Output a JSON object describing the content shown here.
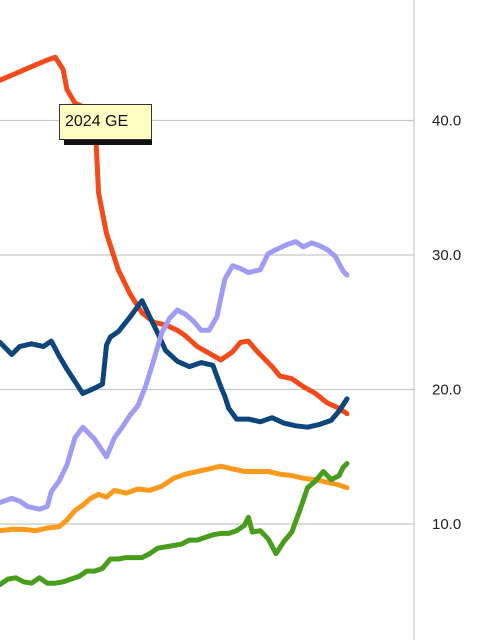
{
  "chart_data": {
    "type": "line",
    "title": "",
    "xlabel": "",
    "ylabel": "",
    "ylim": [
      0,
      49
    ],
    "y_ticks": [
      "10.0",
      "20.0",
      "30.0",
      "40.0"
    ],
    "grid": true,
    "annotation": "2024 GE",
    "x_range": [
      0,
      100
    ],
    "series": [
      {
        "color": "#f44a1a",
        "points": [
          [
            0,
            43.0
          ],
          [
            4,
            43.5
          ],
          [
            8,
            44.0
          ],
          [
            12,
            44.5
          ],
          [
            14,
            44.7
          ],
          [
            16,
            43.8
          ],
          [
            17,
            42.3
          ],
          [
            19,
            41.3
          ],
          [
            22,
            40.9
          ],
          [
            24,
            40.6
          ],
          [
            25,
            34.6
          ],
          [
            27,
            31.6
          ],
          [
            30,
            28.9
          ],
          [
            33,
            27.1
          ],
          [
            36,
            25.7
          ],
          [
            39,
            25.0
          ],
          [
            42,
            24.8
          ],
          [
            45,
            24.4
          ],
          [
            47,
            24.0
          ],
          [
            50,
            23.2
          ],
          [
            53,
            22.7
          ],
          [
            56,
            22.2
          ],
          [
            59,
            22.8
          ],
          [
            61,
            23.5
          ],
          [
            63,
            23.6
          ],
          [
            65,
            22.9
          ],
          [
            67,
            22.3
          ],
          [
            69,
            21.7
          ],
          [
            71,
            21.0
          ],
          [
            74,
            20.8
          ],
          [
            77,
            20.2
          ],
          [
            80,
            19.7
          ],
          [
            83,
            19.0
          ],
          [
            86,
            18.6
          ],
          [
            88,
            18.2
          ]
        ]
      },
      {
        "color": "#0d457d",
        "points": [
          [
            0,
            23.5
          ],
          [
            3,
            22.6
          ],
          [
            5,
            23.2
          ],
          [
            8,
            23.4
          ],
          [
            11,
            23.2
          ],
          [
            13,
            23.6
          ],
          [
            15,
            22.5
          ],
          [
            17,
            21.5
          ],
          [
            19,
            20.6
          ],
          [
            21,
            19.7
          ],
          [
            24,
            20.1
          ],
          [
            26,
            20.4
          ],
          [
            27,
            23.3
          ],
          [
            28,
            23.9
          ],
          [
            30,
            24.3
          ],
          [
            33,
            25.4
          ],
          [
            36,
            26.6
          ],
          [
            38,
            25.4
          ],
          [
            40,
            24.2
          ],
          [
            42,
            22.9
          ],
          [
            45,
            22.1
          ],
          [
            48,
            21.7
          ],
          [
            51,
            22.0
          ],
          [
            54,
            21.8
          ],
          [
            56,
            20.2
          ],
          [
            57,
            19.5
          ],
          [
            58,
            18.6
          ],
          [
            60,
            17.8
          ],
          [
            63,
            17.8
          ],
          [
            66,
            17.6
          ],
          [
            69,
            17.9
          ],
          [
            72,
            17.5
          ],
          [
            75,
            17.3
          ],
          [
            78,
            17.2
          ],
          [
            81,
            17.4
          ],
          [
            84,
            17.7
          ],
          [
            86,
            18.4
          ],
          [
            88,
            19.3
          ]
        ]
      },
      {
        "color": "#a09cf6",
        "points": [
          [
            0,
            11.6
          ],
          [
            3,
            11.9
          ],
          [
            5,
            11.7
          ],
          [
            7,
            11.3
          ],
          [
            10,
            11.1
          ],
          [
            12,
            11.3
          ],
          [
            13,
            12.4
          ],
          [
            15,
            13.2
          ],
          [
            17,
            14.4
          ],
          [
            19,
            16.4
          ],
          [
            21,
            17.2
          ],
          [
            24,
            16.3
          ],
          [
            27,
            15.0
          ],
          [
            29,
            16.4
          ],
          [
            31,
            17.2
          ],
          [
            33,
            18.1
          ],
          [
            35,
            18.8
          ],
          [
            37,
            20.3
          ],
          [
            39,
            22.2
          ],
          [
            41,
            24.2
          ],
          [
            43,
            25.3
          ],
          [
            45,
            25.9
          ],
          [
            47,
            25.6
          ],
          [
            49,
            25.1
          ],
          [
            51,
            24.4
          ],
          [
            53,
            24.4
          ],
          [
            55,
            25.4
          ],
          [
            57,
            28.2
          ],
          [
            59,
            29.2
          ],
          [
            61,
            29.0
          ],
          [
            63,
            28.7
          ],
          [
            66,
            28.9
          ],
          [
            68,
            30.1
          ],
          [
            70,
            30.4
          ],
          [
            73,
            30.8
          ],
          [
            75,
            31.0
          ],
          [
            77,
            30.6
          ],
          [
            79,
            30.9
          ],
          [
            81,
            30.7
          ],
          [
            83,
            30.4
          ],
          [
            85,
            29.9
          ],
          [
            87,
            28.8
          ],
          [
            88,
            28.5
          ]
        ]
      },
      {
        "color": "#fb9a1c",
        "points": [
          [
            0,
            9.5
          ],
          [
            3,
            9.6
          ],
          [
            6,
            9.6
          ],
          [
            9,
            9.5
          ],
          [
            12,
            9.7
          ],
          [
            15,
            9.8
          ],
          [
            17,
            10.3
          ],
          [
            19,
            11.0
          ],
          [
            21,
            11.4
          ],
          [
            23,
            11.9
          ],
          [
            25,
            12.2
          ],
          [
            27,
            12.0
          ],
          [
            29,
            12.5
          ],
          [
            32,
            12.3
          ],
          [
            35,
            12.6
          ],
          [
            38,
            12.5
          ],
          [
            41,
            12.8
          ],
          [
            44,
            13.4
          ],
          [
            47,
            13.7
          ],
          [
            50,
            13.9
          ],
          [
            53,
            14.1
          ],
          [
            56,
            14.3
          ],
          [
            59,
            14.1
          ],
          [
            62,
            13.9
          ],
          [
            65,
            13.9
          ],
          [
            68,
            13.9
          ],
          [
            71,
            13.7
          ],
          [
            74,
            13.6
          ],
          [
            77,
            13.4
          ],
          [
            80,
            13.3
          ],
          [
            83,
            13.1
          ],
          [
            86,
            12.9
          ],
          [
            88,
            12.7
          ]
        ]
      },
      {
        "color": "#4a9d1c",
        "points": [
          [
            0,
            5.5
          ],
          [
            2,
            5.9
          ],
          [
            4,
            6.0
          ],
          [
            6,
            5.7
          ],
          [
            8,
            5.6
          ],
          [
            10,
            6.0
          ],
          [
            12,
            5.6
          ],
          [
            14,
            5.6
          ],
          [
            16,
            5.7
          ],
          [
            18,
            5.9
          ],
          [
            20,
            6.1
          ],
          [
            22,
            6.5
          ],
          [
            24,
            6.5
          ],
          [
            26,
            6.7
          ],
          [
            28,
            7.4
          ],
          [
            30,
            7.4
          ],
          [
            32,
            7.5
          ],
          [
            34,
            7.5
          ],
          [
            36,
            7.5
          ],
          [
            38,
            7.8
          ],
          [
            40,
            8.2
          ],
          [
            42,
            8.3
          ],
          [
            44,
            8.4
          ],
          [
            46,
            8.5
          ],
          [
            48,
            8.8
          ],
          [
            50,
            8.8
          ],
          [
            52,
            9.0
          ],
          [
            54,
            9.2
          ],
          [
            56,
            9.3
          ],
          [
            58,
            9.3
          ],
          [
            60,
            9.5
          ],
          [
            62,
            9.9
          ],
          [
            63,
            10.5
          ],
          [
            64,
            9.4
          ],
          [
            66,
            9.5
          ],
          [
            68,
            8.9
          ],
          [
            70,
            7.8
          ],
          [
            72,
            8.7
          ],
          [
            74,
            9.4
          ],
          [
            76,
            11.0
          ],
          [
            78,
            12.7
          ],
          [
            80,
            13.2
          ],
          [
            82,
            13.9
          ],
          [
            84,
            13.3
          ],
          [
            86,
            13.6
          ],
          [
            87,
            14.2
          ],
          [
            88,
            14.5
          ]
        ]
      }
    ]
  }
}
